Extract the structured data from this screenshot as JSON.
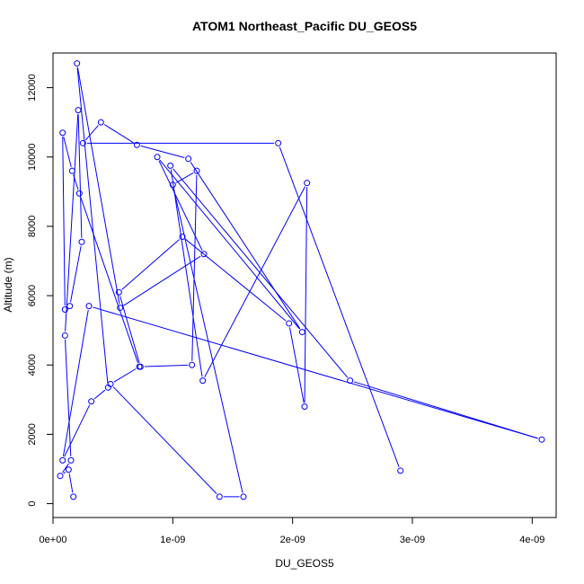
{
  "chart_data": {
    "type": "line",
    "title": "ATOM1 Northeast_Pacific DU_GEOS5",
    "xlabel": "DU_GEOS5",
    "ylabel": "Altitude (m)",
    "xlim": [
      0,
      4.2e-09
    ],
    "ylim": [
      -400,
      13000
    ],
    "x_ticks": [
      0,
      1e-09,
      2e-09,
      3e-09,
      4e-09
    ],
    "x_tick_labels": [
      "0e+00",
      "1e-09",
      "2e-09",
      "3e-09",
      "4e-09"
    ],
    "y_ticks": [
      0,
      2000,
      4000,
      6000,
      8000,
      10000,
      12000
    ],
    "y_tick_labels": [
      "0",
      "2000",
      "4000",
      "6000",
      "8000",
      "10000",
      "12000"
    ],
    "grid": false,
    "line_color": "#0000ff",
    "marker": "open-circle",
    "series": [
      {
        "x": [
          1.7e-10,
          1.3e-10,
          6e-11,
          1.5e-10,
          1e-10,
          2.1e-10,
          2.4e-10,
          1.4e-10,
          1e-10,
          8e-11,
          1.6e-10,
          2.2e-10,
          7.2e-10,
          4.8e-10,
          1.39e-09,
          1.59e-09,
          1e-09,
          1.2e-09,
          1.16e-09,
          7.3e-10,
          5.5e-10,
          1.08e-09,
          1.97e-09,
          2.1e-09,
          2.12e-09,
          1.25e-09,
          9.8e-10,
          2.48e-09,
          4.08e-09,
          3e-10,
          8e-11,
          3.2e-10,
          4.6e-10,
          2e-10,
          5.6e-10,
          1.26e-09,
          8.7e-10,
          2.08e-09,
          1.13e-09,
          7e-10,
          4e-10,
          2.5e-10,
          1.88e-09,
          2.9e-09
        ],
        "y": [
          200,
          980,
          800,
          1250,
          4850,
          11350,
          7550,
          5700,
          5600,
          10700,
          9600,
          8950,
          3950,
          3450,
          200,
          200,
          9200,
          9600,
          4000,
          3950,
          6100,
          7700,
          5200,
          2800,
          9250,
          3550,
          9750,
          3550,
          1850,
          5700,
          1250,
          2950,
          3350,
          12700,
          5650,
          7200,
          10000,
          4950,
          9950,
          10350,
          11000,
          10400,
          10400,
          950
        ]
      }
    ]
  }
}
